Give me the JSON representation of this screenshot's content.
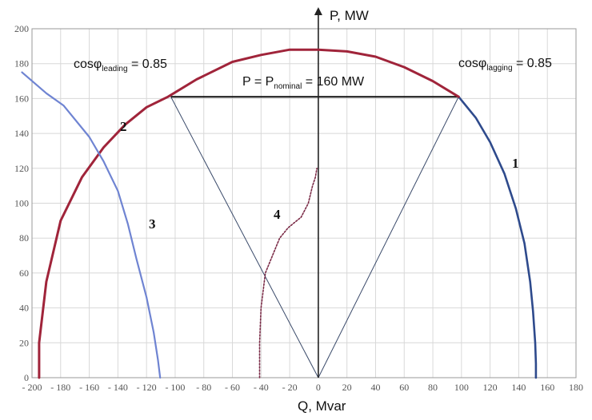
{
  "chart_data": {
    "type": "line",
    "title": "",
    "xlabel": "Q, Mvar",
    "ylabel": "P, MW",
    "xlim": [
      -200,
      180
    ],
    "ylim": [
      0,
      200
    ],
    "x_ticks": [
      "- 200",
      "- 180",
      "- 160",
      "- 140",
      "- 120",
      "- 100",
      "- 80",
      "- 60",
      "- 40",
      "- 20",
      "0",
      "20",
      "40",
      "60",
      "80",
      "100",
      "120",
      "140",
      "160",
      "180"
    ],
    "x_tick_values": [
      -200,
      -180,
      -160,
      -140,
      -120,
      -100,
      -80,
      -60,
      -40,
      -20,
      0,
      20,
      40,
      60,
      80,
      100,
      120,
      140,
      160,
      180
    ],
    "y_ticks": [
      "0",
      "20",
      "40",
      "60",
      "80",
      "100",
      "120",
      "140",
      "160",
      "180",
      "200"
    ],
    "y_tick_values": [
      0,
      20,
      40,
      60,
      80,
      100,
      120,
      140,
      160,
      180,
      200
    ],
    "grid": true,
    "colors": {
      "curve1": "#2e4a8c",
      "curve2": "#a0243a",
      "curve3": "#6f84d2",
      "curve4": "#7a2a46",
      "lines": "#3a4a6a",
      "grid": "#d8d8d8"
    },
    "series": [
      {
        "name": "1",
        "label": "1",
        "x": [
          98,
          110,
          120,
          130,
          138,
          144,
          148,
          150,
          151.5,
          152,
          152
        ],
        "y": [
          161,
          149,
          135,
          117,
          97,
          77,
          55,
          38,
          20,
          8,
          0
        ]
      },
      {
        "name": "2",
        "label": "2",
        "x": [
          -195,
          -195,
          -190,
          -180,
          -165,
          -150,
          -135,
          -120,
          -105,
          -85,
          -60,
          -40,
          -20,
          0,
          20,
          40,
          60,
          80,
          98
        ],
        "y": [
          0,
          20,
          55,
          90,
          115,
          132,
          145,
          155,
          161,
          171,
          181,
          185,
          188,
          188,
          187,
          184,
          178,
          170,
          161
        ]
      },
      {
        "name": "3",
        "label": "3",
        "x": [
          -207,
          -190,
          -178,
          -160,
          -150,
          -140,
          -133,
          -127,
          -120,
          -115,
          -112,
          -110.5
        ],
        "y": [
          175,
          163,
          156,
          138,
          124,
          107,
          88,
          68,
          46,
          26,
          10,
          0
        ]
      },
      {
        "name": "4",
        "label": "4",
        "x": [
          -41,
          -41,
          -40,
          -37,
          -32,
          -27,
          -21,
          -12,
          -7,
          -4,
          -2,
          -1
        ],
        "y": [
          0,
          20,
          40,
          60,
          70,
          80,
          86,
          92,
          100,
          110,
          115,
          120
        ]
      }
    ],
    "lines": [
      {
        "label": "cosφ_leading = 0.85",
        "x": [
          -103,
          0
        ],
        "y": [
          161,
          0
        ]
      },
      {
        "label": "cosφ_lagging = 0.85",
        "x": [
          98,
          0
        ],
        "y": [
          161,
          0
        ]
      },
      {
        "label": "P = P_nominal = 160 MW",
        "x": [
          -103,
          98
        ],
        "y": [
          161,
          161
        ]
      }
    ],
    "annotations": {
      "leading": {
        "main": "cosφ",
        "sub": "leading",
        "tail": " = 0.85"
      },
      "lagging": {
        "main": "cosφ",
        "sub": "lagging",
        "tail": " = 0.85"
      },
      "nominal": {
        "head": "P = P",
        "sub": "nominal",
        "tail": " = 160 MW"
      }
    }
  }
}
